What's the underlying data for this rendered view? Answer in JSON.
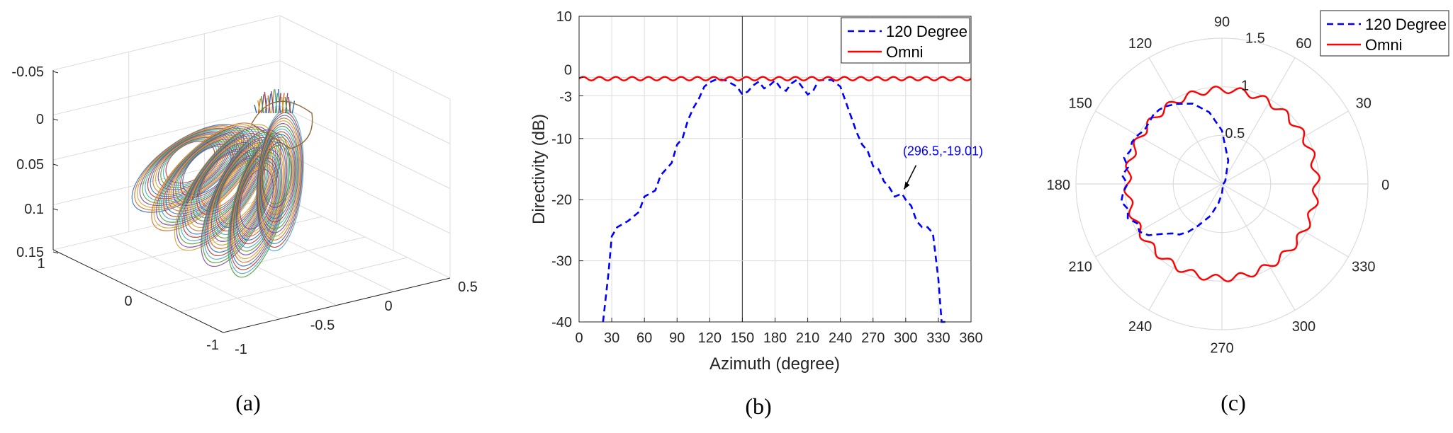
{
  "chart_data": [
    {
      "type": "surface",
      "panel": "(a)",
      "caption": "(a)",
      "z_ticks": [
        "-0.05",
        "0",
        "0.05",
        "0.1",
        "0.15"
      ],
      "y_ticks": [
        "1",
        "0",
        "-1"
      ],
      "x_ticks": [
        "-1",
        "-0.5",
        "0",
        "0.5"
      ],
      "grid": true
    },
    {
      "type": "line",
      "panel": "(b)",
      "caption": "(b)",
      "xlabel": "Azimuth (degree)",
      "ylabel": "Directivity (dB)",
      "xlim": [
        0,
        360
      ],
      "ylim": [
        -40,
        10
      ],
      "x_ticks": [
        "0",
        "30",
        "60",
        "90",
        "120",
        "150",
        "180",
        "210",
        "240",
        "270",
        "300",
        "330",
        "360"
      ],
      "y_ticks": [
        "10",
        "0",
        "-3",
        "-10",
        "-20",
        "-30",
        "-40"
      ],
      "grid": true,
      "legend_position": "top-right",
      "series": [
        {
          "name": "120 Degree",
          "color": "#0000ff",
          "style": "dashed",
          "x": [
            22,
            27,
            30,
            35,
            45,
            55,
            60,
            65,
            70,
            75,
            80,
            85,
            90,
            95,
            100,
            105,
            110,
            115,
            120,
            125,
            128,
            135,
            145,
            150,
            155,
            160,
            165,
            170,
            175,
            180,
            185,
            190,
            195,
            200,
            205,
            210,
            215,
            220,
            225,
            232,
            240,
            245,
            250,
            255,
            260,
            265,
            270,
            275,
            280,
            285,
            290,
            296.5,
            300,
            305,
            310,
            315,
            320,
            325,
            330,
            333,
            335,
            337
          ],
          "y": [
            -40,
            -32,
            -26,
            -24.5,
            -23.5,
            -22,
            -19.5,
            -19,
            -18.5,
            -16,
            -15,
            -14,
            -11,
            -10,
            -7,
            -5,
            -3.5,
            -1.5,
            -0.8,
            -0.4,
            -0.3,
            -0.5,
            -1.5,
            -2.8,
            -2.3,
            -1.3,
            -0.7,
            -1.8,
            -1.3,
            -0.5,
            -1.7,
            -2.2,
            -1,
            -0.4,
            -1.6,
            -2.8,
            -2.2,
            -0.5,
            -0.4,
            -0.4,
            -1.5,
            -4,
            -6.5,
            -9,
            -11,
            -12,
            -14.5,
            -15,
            -17,
            -18,
            -19.5,
            -19.01,
            -20,
            -21,
            -23.5,
            -24.5,
            -24.5,
            -25.5,
            -33,
            -40,
            -40,
            -40
          ]
        },
        {
          "name": "Omni",
          "color": "#ff0000",
          "style": "solid",
          "mean": -0.2,
          "ripple_amplitude": 0.3,
          "ripple_cycles": 24
        }
      ],
      "annotation": {
        "label": "(296.5,-19.01)",
        "x": 296.5,
        "y": -19.01
      }
    },
    {
      "type": "polar",
      "panel": "(c)",
      "caption": "(c)",
      "rlim": [
        0,
        1.5
      ],
      "r_ticks": [
        "0.5",
        "1",
        "1.5"
      ],
      "r_values": [
        0.5,
        1,
        1.5
      ],
      "theta_ticks": [
        "0",
        "30",
        "60",
        "90",
        "120",
        "150",
        "180",
        "210",
        "240",
        "270",
        "300",
        "330"
      ],
      "legend_position": "top-right",
      "series": [
        {
          "name": "120 Degree",
          "color": "#0000ff",
          "style": "dashed",
          "theta": [
            0,
            20,
            30,
            45,
            60,
            75,
            90,
            100,
            110,
            120,
            125,
            130,
            135,
            140,
            145,
            150,
            155,
            160,
            165,
            170,
            175,
            180,
            185,
            190,
            195,
            200,
            205,
            210,
            215,
            220,
            225,
            230,
            235,
            240,
            250,
            260,
            270,
            280,
            300,
            330,
            340,
            350,
            360
          ],
          "r": [
            0.01,
            0.02,
            0.03,
            0.05,
            0.08,
            0.25,
            0.55,
            0.75,
            0.88,
            0.95,
            0.98,
            1.0,
            1.0,
            0.98,
            0.97,
            1.0,
            1.02,
            1.0,
            1.04,
            0.98,
            1.03,
            0.97,
            1.02,
            1.05,
            1.0,
            1.03,
            0.96,
            0.98,
            0.92,
            0.8,
            0.72,
            0.68,
            0.6,
            0.5,
            0.35,
            0.2,
            0.1,
            0.04,
            0.02,
            0.01,
            0.01,
            0.01,
            0.01
          ]
        },
        {
          "name": "Omni",
          "color": "#ff0000",
          "style": "solid",
          "mean": 0.97,
          "ripple_amplitude": 0.035,
          "ripple_cycles": 24
        }
      ]
    }
  ]
}
